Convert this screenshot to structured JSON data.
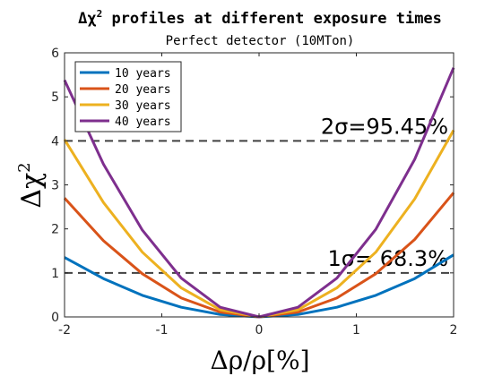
{
  "chart_data": {
    "type": "line",
    "title_prefix": "Δχ",
    "title_sup": "2",
    "title_rest": " profiles at different exposure times",
    "subtitle": "Perfect detector (10MTon)",
    "xlabel": "Δρ/ρ[%]",
    "ylabel": "Δχ",
    "ylabel_sup": "2",
    "xlim": [
      -2,
      2
    ],
    "ylim": [
      0,
      6
    ],
    "xticks": [
      -2,
      -1,
      0,
      1,
      2
    ],
    "yticks": [
      0,
      1,
      2,
      3,
      4,
      5,
      6
    ],
    "grid": false,
    "legend_position": "top-left",
    "x": [
      -2,
      -1.6,
      -1.2,
      -0.8,
      -0.4,
      0,
      0.4,
      0.8,
      1.2,
      1.6,
      2
    ],
    "series": [
      {
        "name": "10 years",
        "color": "#0072BD",
        "values": [
          1.35,
          0.87,
          0.49,
          0.22,
          0.055,
          0,
          0.055,
          0.22,
          0.49,
          0.87,
          1.41
        ]
      },
      {
        "name": "20 years",
        "color": "#D95319",
        "values": [
          2.7,
          1.73,
          0.98,
          0.43,
          0.11,
          0,
          0.11,
          0.43,
          0.98,
          1.76,
          2.82
        ]
      },
      {
        "name": "30 years",
        "color": "#EDB120",
        "values": [
          4.03,
          2.6,
          1.47,
          0.66,
          0.16,
          0,
          0.16,
          0.66,
          1.47,
          2.68,
          4.24
        ]
      },
      {
        "name": "40 years",
        "color": "#7E2F8E",
        "values": [
          5.38,
          3.47,
          1.97,
          0.88,
          0.22,
          0,
          0.22,
          0.88,
          1.99,
          3.58,
          5.66
        ]
      }
    ],
    "reference_lines": [
      {
        "y": 4,
        "label_sym": "2σ",
        "label_val": "=95.45%",
        "color": "#404040"
      },
      {
        "y": 1,
        "label_sym": "1σ",
        "label_val": "= 68.3%",
        "color": "#404040"
      }
    ]
  }
}
